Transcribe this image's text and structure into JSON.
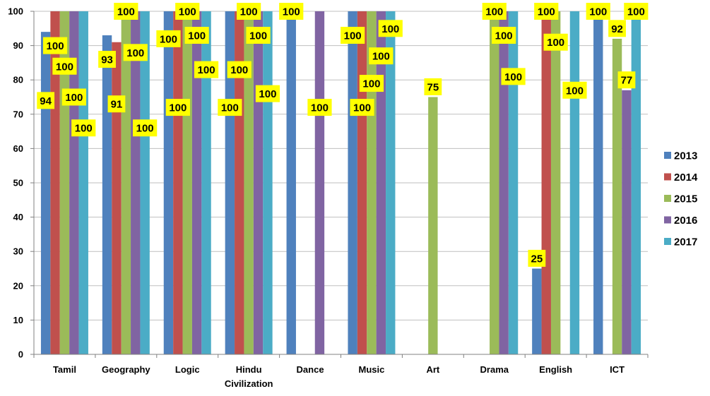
{
  "chart_data": {
    "type": "bar",
    "title": "",
    "xlabel": "",
    "ylabel": "",
    "ylim": [
      0,
      100
    ],
    "yticks": [
      0,
      10,
      20,
      30,
      40,
      50,
      60,
      70,
      80,
      90,
      100
    ],
    "grid": true,
    "legend_position": "right",
    "categories": [
      [
        "Tamil"
      ],
      [
        "Geography"
      ],
      [
        "Logic"
      ],
      [
        "Hindu",
        "Civilization"
      ],
      [
        "Dance"
      ],
      [
        "Music"
      ],
      [
        "Art"
      ],
      [
        "Drama"
      ],
      [
        "English"
      ],
      [
        "ICT"
      ]
    ],
    "series": [
      {
        "name": "2013",
        "color": "#4F81BD",
        "values": [
          94,
          93,
          100,
          100,
          100,
          100,
          null,
          null,
          25,
          100
        ]
      },
      {
        "name": "2014",
        "color": "#C0504D",
        "values": [
          100,
          91,
          100,
          100,
          null,
          100,
          null,
          null,
          100,
          null
        ]
      },
      {
        "name": "2015",
        "color": "#9BBB59",
        "values": [
          100,
          100,
          100,
          100,
          null,
          100,
          75,
          100,
          100,
          92
        ]
      },
      {
        "name": "2016",
        "color": "#8064A2",
        "values": [
          100,
          100,
          100,
          100,
          100,
          100,
          null,
          100,
          null,
          77
        ]
      },
      {
        "name": "2017",
        "color": "#4BACC6",
        "values": [
          100,
          100,
          100,
          100,
          null,
          100,
          null,
          100,
          100,
          100
        ]
      }
    ],
    "data_labels": [
      {
        "series": 0,
        "category": 0,
        "text": "94",
        "at": 74
      },
      {
        "series": 1,
        "category": 0,
        "text": "100",
        "at": 90
      },
      {
        "series": 2,
        "category": 0,
        "text": "100",
        "at": 84
      },
      {
        "series": 3,
        "category": 0,
        "text": "100",
        "at": 75
      },
      {
        "series": 4,
        "category": 0,
        "text": "100",
        "at": 66
      },
      {
        "series": 0,
        "category": 1,
        "text": "93",
        "at": 86
      },
      {
        "series": 1,
        "category": 1,
        "text": "91",
        "at": 73
      },
      {
        "series": 2,
        "category": 1,
        "text": "100",
        "at": 100
      },
      {
        "series": 3,
        "category": 1,
        "text": "100",
        "at": 88
      },
      {
        "series": 4,
        "category": 1,
        "text": "100",
        "at": 66
      },
      {
        "series": 0,
        "category": 2,
        "text": "100",
        "at": 92
      },
      {
        "series": 1,
        "category": 2,
        "text": "100",
        "at": 72
      },
      {
        "series": 2,
        "category": 2,
        "text": "100",
        "at": 100
      },
      {
        "series": 3,
        "category": 2,
        "text": "100",
        "at": 93
      },
      {
        "series": 4,
        "category": 2,
        "text": "100",
        "at": 83
      },
      {
        "series": 0,
        "category": 3,
        "text": "100",
        "at": 72
      },
      {
        "series": 1,
        "category": 3,
        "text": "100",
        "at": 83
      },
      {
        "series": 2,
        "category": 3,
        "text": "100",
        "at": 100
      },
      {
        "series": 3,
        "category": 3,
        "text": "100",
        "at": 93
      },
      {
        "series": 4,
        "category": 3,
        "text": "100",
        "at": 76
      },
      {
        "series": 0,
        "category": 4,
        "text": "100",
        "at": 100
      },
      {
        "series": 3,
        "category": 4,
        "text": "100",
        "at": 72
      },
      {
        "series": 0,
        "category": 5,
        "text": "100",
        "at": 93
      },
      {
        "series": 1,
        "category": 5,
        "text": "100",
        "at": 72
      },
      {
        "series": 2,
        "category": 5,
        "text": "100",
        "at": 79
      },
      {
        "series": 3,
        "category": 5,
        "text": "100",
        "at": 87
      },
      {
        "series": 4,
        "category": 5,
        "text": "100",
        "at": 95
      },
      {
        "series": 2,
        "category": 6,
        "text": "75",
        "at": 78
      },
      {
        "series": 2,
        "category": 7,
        "text": "100",
        "at": 100
      },
      {
        "series": 3,
        "category": 7,
        "text": "100",
        "at": 93
      },
      {
        "series": 4,
        "category": 7,
        "text": "100",
        "at": 81
      },
      {
        "series": 0,
        "category": 8,
        "text": "25",
        "at": 28
      },
      {
        "series": 1,
        "category": 8,
        "text": "100",
        "at": 100
      },
      {
        "series": 2,
        "category": 8,
        "text": "100",
        "at": 91
      },
      {
        "series": 4,
        "category": 8,
        "text": "100",
        "at": 77
      },
      {
        "series": 0,
        "category": 9,
        "text": "100",
        "at": 100
      },
      {
        "series": 2,
        "category": 9,
        "text": "92",
        "at": 95
      },
      {
        "series": 3,
        "category": 9,
        "text": "77",
        "at": 80
      },
      {
        "series": 4,
        "category": 9,
        "text": "100",
        "at": 100
      }
    ]
  }
}
